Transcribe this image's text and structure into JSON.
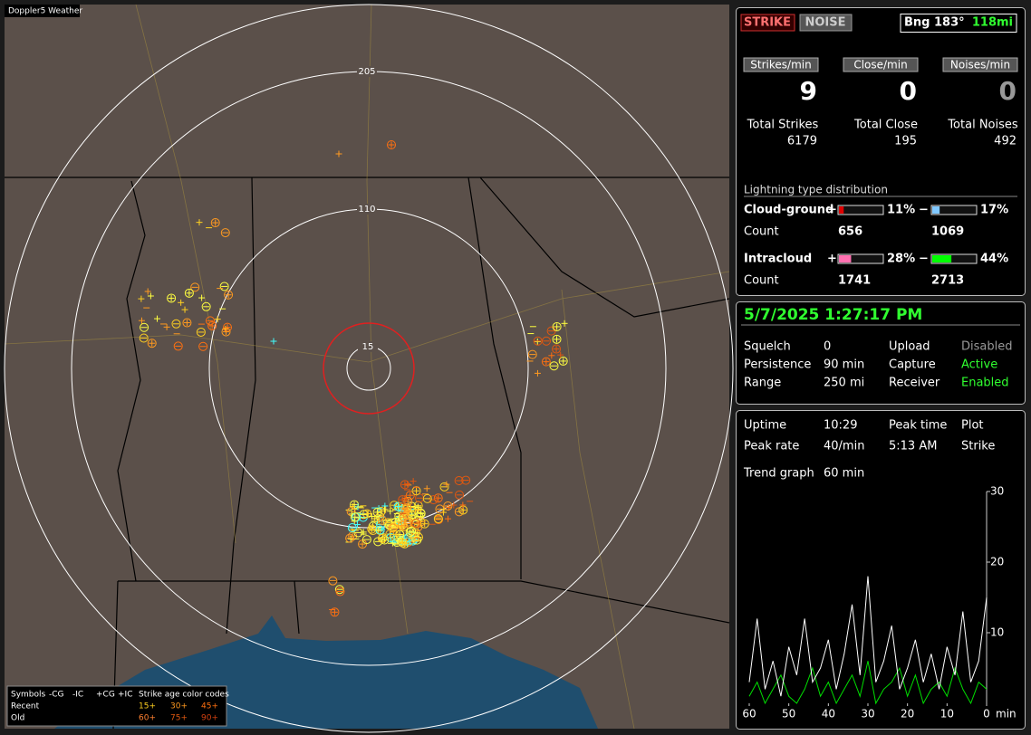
{
  "map": {
    "title": "Doppler5 Weather",
    "ring_labels": [
      "205",
      "110",
      "15"
    ],
    "legend": {
      "symbols": "Symbols",
      "columns": [
        "-CG",
        "-IC",
        "+CG",
        "+IC"
      ],
      "age_title": "Strike age color codes",
      "rows": [
        "Recent",
        "Old"
      ],
      "age_codes": [
        [
          "15+",
          "30+",
          "45+"
        ],
        [
          "60+",
          "75+",
          "90+"
        ]
      ]
    }
  },
  "status": {
    "strike": "STRIKE",
    "noise": "NOISE",
    "bearing": "Bng 183°",
    "distance": "118mi"
  },
  "rates": [
    {
      "label": "Strikes/min",
      "value": 9
    },
    {
      "label": "Close/min",
      "value": 0
    },
    {
      "label": "Noises/min",
      "value": 0
    }
  ],
  "totals": [
    {
      "label": "Total Strikes",
      "value": 6179
    },
    {
      "label": "Total Close",
      "value": 195
    },
    {
      "label": "Total Noises",
      "value": 492
    }
  ],
  "distribution": {
    "title": "Lightning type distribution",
    "plus_sign": "+",
    "minus_sign": "−",
    "rows": [
      {
        "type": "Cloud-ground",
        "count_label": "Count",
        "plus": {
          "percent": {
            "value": 11,
            "label": "11%"
          },
          "count": 656
        },
        "minus": {
          "percent": {
            "value": 17,
            "label": "17%"
          },
          "count": 1069
        }
      },
      {
        "type": "Intracloud",
        "count_label": "Count",
        "plus": {
          "percent": {
            "value": 28,
            "label": "28%"
          },
          "count": 1741
        },
        "minus": {
          "percent": {
            "value": 44,
            "label": "44%"
          },
          "count": 2713
        }
      }
    ]
  },
  "datetime": "5/7/2025 1:27:17 PM",
  "settings": [
    [
      "Squelch",
      "0",
      "Upload",
      "Disabled"
    ],
    [
      "Persistence",
      "90 min",
      "Capture",
      "Active"
    ],
    [
      "Range",
      "250 mi",
      "Receiver",
      "Enabled"
    ]
  ],
  "stats": [
    [
      "Uptime",
      "10:29",
      "Peak time",
      "Plot"
    ],
    [
      "Peak rate",
      "40/min",
      "5:13 AM",
      "Strike"
    ],
    [
      "Trend graph",
      "60 min"
    ]
  ],
  "trend": {
    "xlim": [
      60,
      0
    ],
    "ylim": [
      0,
      30
    ],
    "xticks": [
      60,
      50,
      40,
      30,
      20,
      10,
      0
    ],
    "yticks": [
      10,
      20,
      30
    ],
    "x_unit": "min",
    "x": [
      60,
      58,
      56,
      54,
      52,
      50,
      48,
      46,
      44,
      42,
      40,
      38,
      36,
      34,
      32,
      30,
      28,
      26,
      24,
      22,
      20,
      18,
      16,
      14,
      12,
      10,
      8,
      6,
      4,
      2,
      0
    ],
    "series": [
      {
        "color": "#ffffff",
        "values": [
          3,
          12,
          2,
          6,
          1,
          8,
          4,
          12,
          3,
          5,
          9,
          2,
          7,
          14,
          4,
          18,
          3,
          6,
          11,
          2,
          5,
          9,
          3,
          7,
          2,
          8,
          4,
          13,
          3,
          6,
          15
        ]
      },
      {
        "color": "#00e000",
        "values": [
          1,
          3,
          0,
          2,
          4,
          1,
          0,
          2,
          5,
          1,
          3,
          0,
          2,
          4,
          1,
          6,
          0,
          2,
          3,
          5,
          1,
          4,
          0,
          2,
          3,
          1,
          5,
          2,
          0,
          3,
          2
        ]
      }
    ]
  }
}
